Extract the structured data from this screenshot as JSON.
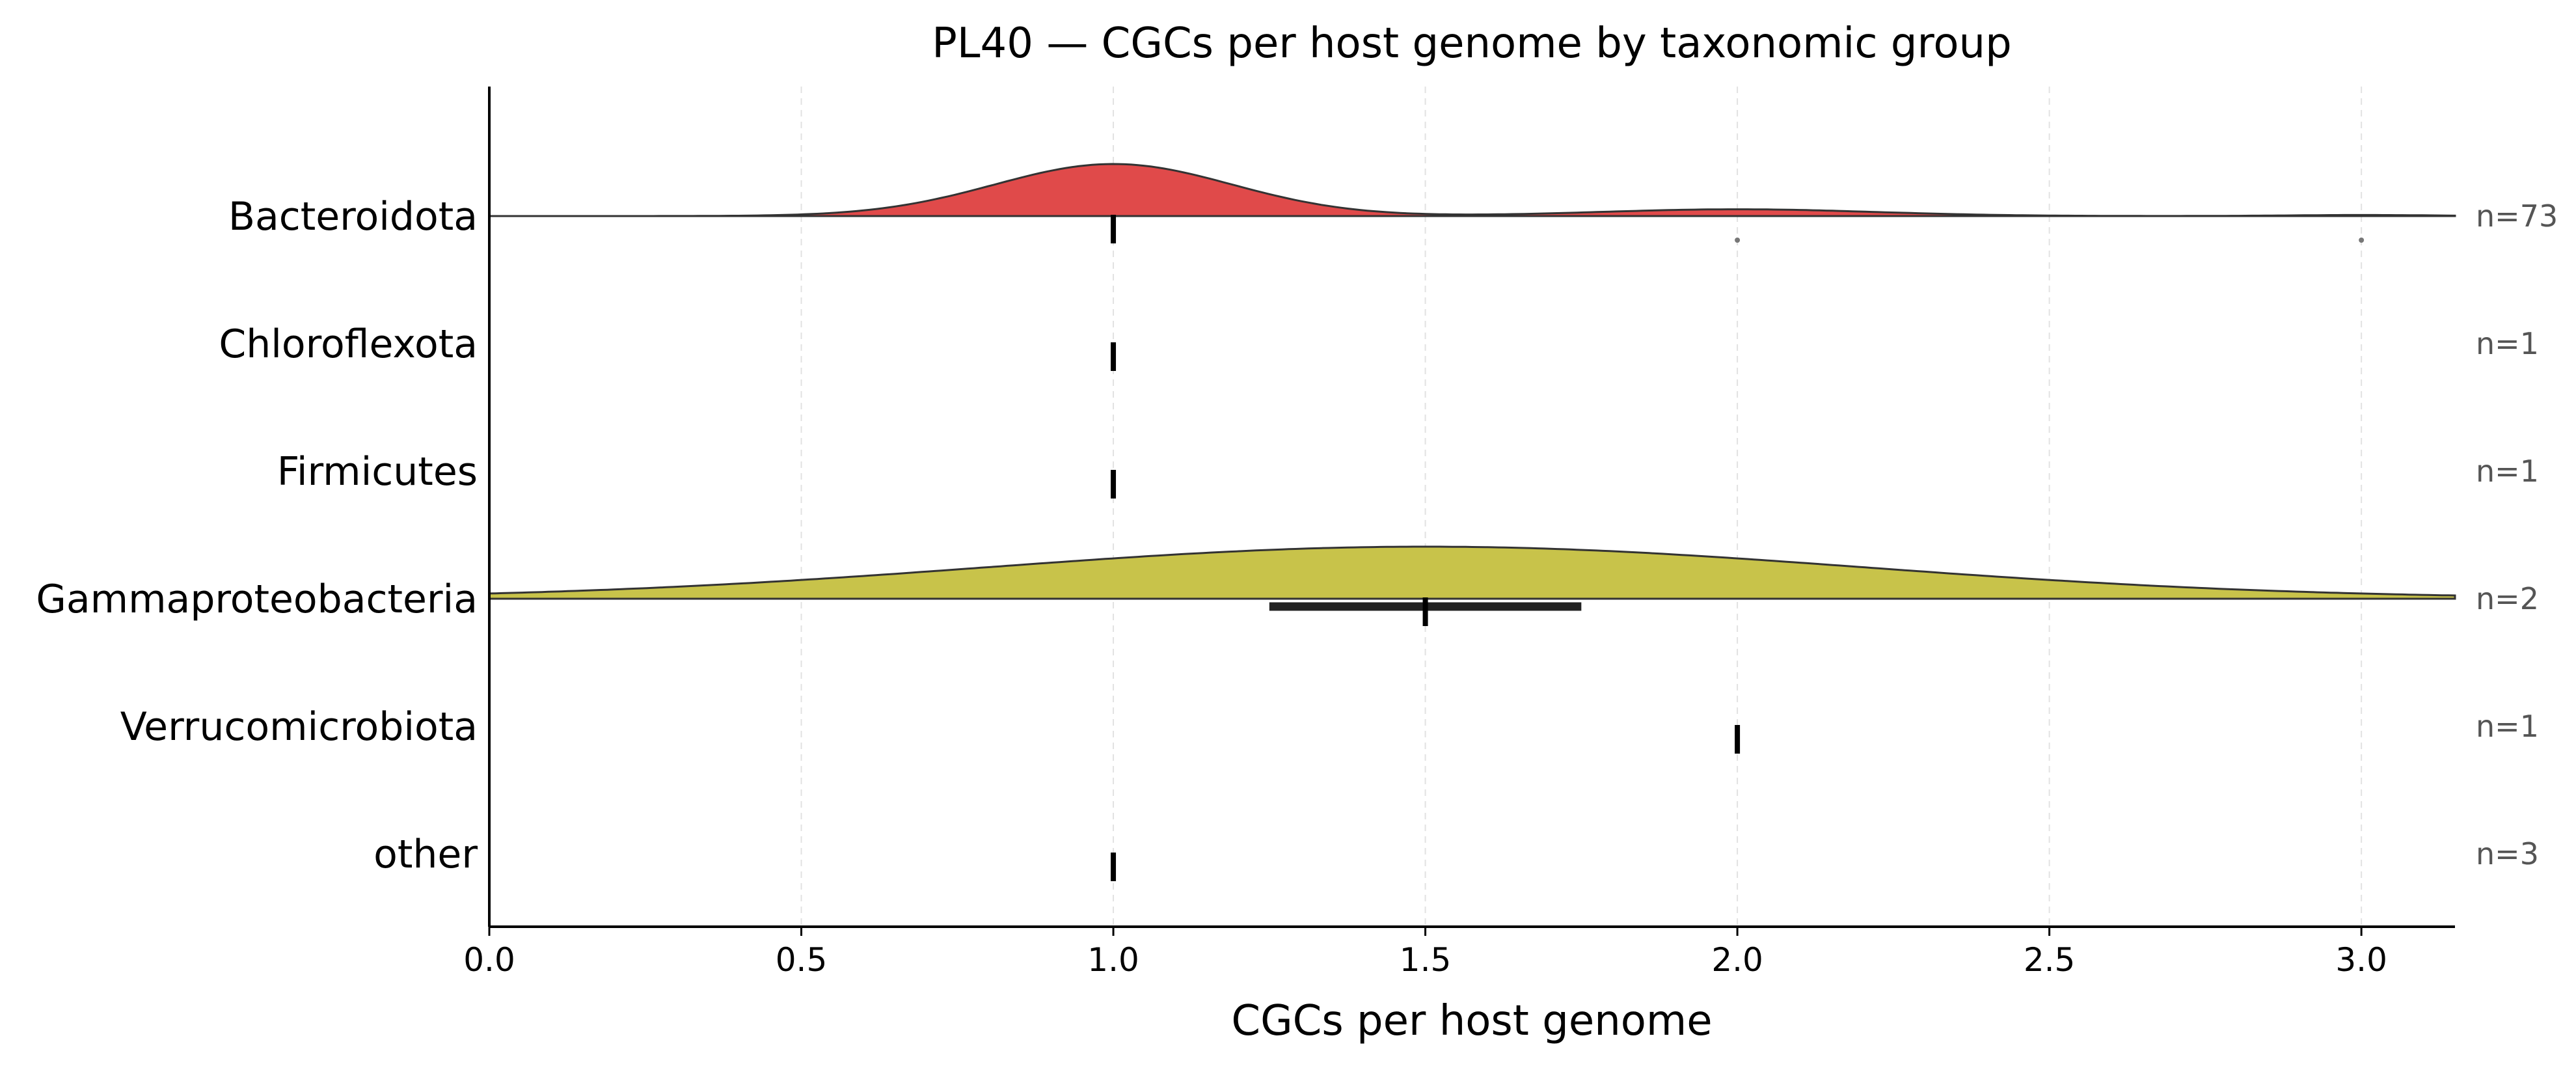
{
  "chart_data": {
    "type": "ridgeline",
    "title": "PL40 — CGCs per host genome by taxonomic group",
    "xlabel": "CGCs per host genome",
    "ylabel": "",
    "xlim": [
      0.0,
      3.15
    ],
    "xticks": [
      0.0,
      0.5,
      1.0,
      1.5,
      2.0,
      2.5,
      3.0
    ],
    "xtick_labels": [
      "0.0",
      "0.5",
      "1.0",
      "1.5",
      "2.0",
      "2.5",
      "3.0"
    ],
    "grid": "vertical dashed",
    "groups": [
      {
        "name": "Bacteroidota",
        "n_label": "n=73",
        "n": 73,
        "color": "#e04a4a",
        "median": 1.0,
        "iqr": [
          1.0,
          1.0
        ],
        "density": true,
        "peaks": [
          [
            1.0,
            1.0,
            0.19
          ],
          [
            2.0,
            0.13,
            0.22
          ],
          [
            3.0,
            0.02,
            0.12
          ]
        ],
        "outliers": [
          2.0,
          3.0
        ]
      },
      {
        "name": "Chloroflexota",
        "n_label": "n=1",
        "n": 1,
        "median": 1.0,
        "density": false
      },
      {
        "name": "Firmicutes",
        "n_label": "n=1",
        "n": 1,
        "median": 1.0,
        "density": false
      },
      {
        "name": "Gammaproteobacteria",
        "n_label": "n=2",
        "n": 2,
        "color": "#c8c34a",
        "median": 1.5,
        "iqr": [
          1.25,
          1.75
        ],
        "density": true,
        "peaks": [
          [
            1.5,
            0.28,
            0.7
          ]
        ],
        "outliers": []
      },
      {
        "name": "Verrucomicrobiota",
        "n_label": "n=1",
        "n": 1,
        "median": 2.0,
        "density": false
      },
      {
        "name": "other",
        "n_label": "n=3",
        "n": 3,
        "median": 1.0,
        "density": false
      }
    ]
  }
}
